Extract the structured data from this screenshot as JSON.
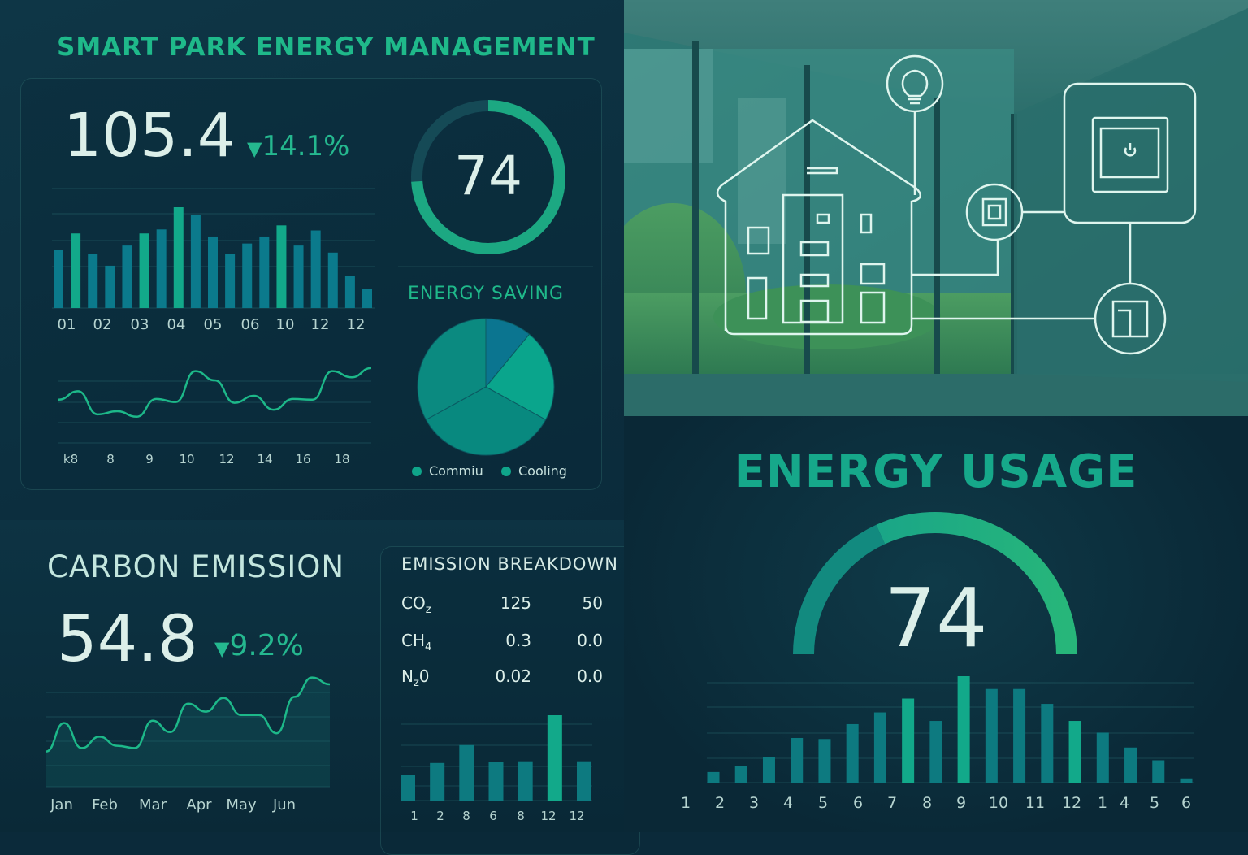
{
  "header": {
    "title": "SMART PARK ENERGY MANAGEMENT"
  },
  "kpi": {
    "value": "105.4",
    "delta": "14.1%",
    "delta_direction": "down"
  },
  "score_ring": {
    "value": "74",
    "fraction": 0.74
  },
  "energy_saving": {
    "title": "ENERGY SAVING",
    "legend": [
      {
        "label": "Commiu",
        "color": "#0fa58a"
      },
      {
        "label": "Cooling",
        "color": "#0fa58a"
      }
    ]
  },
  "carbon": {
    "title": "CARBON EMISSION",
    "value": "54.8",
    "delta": "9.2%",
    "delta_direction": "down"
  },
  "breakdown": {
    "title": "EMISSION BREAKDOWN",
    "rows": [
      {
        "gas": "CO",
        "sub": "z",
        "v1": "125",
        "v2": "50"
      },
      {
        "gas": "CH",
        "sub": "4",
        "v1": "0.3",
        "v2": "0.0"
      },
      {
        "gas": "N",
        "sub": "z",
        "tail": "0",
        "v1": "0.02",
        "v2": "0.0"
      }
    ]
  },
  "usage": {
    "title": "ENERGY USAGE",
    "value": "74",
    "fraction": 0.74
  },
  "colors": {
    "accent": "#1fb98a",
    "bar": "#0b7a8c",
    "bar_highlight": "#12a98a",
    "track": "#154a56",
    "background": "#0b2a3a"
  },
  "chart_data": [
    {
      "id": "top-bars",
      "type": "bar",
      "values": [
        58,
        74,
        54,
        42,
        62,
        74,
        78,
        100,
        92,
        71,
        54,
        64,
        71,
        82,
        62,
        77,
        55,
        32,
        19
      ],
      "highlight": [
        1,
        5,
        7,
        13
      ],
      "tick_labels": [
        "01",
        "02",
        "03",
        "04",
        "05",
        "06",
        "10",
        "12",
        "12"
      ],
      "ylim": [
        0,
        100
      ],
      "grid": true
    },
    {
      "id": "top-line",
      "type": "line",
      "values": [
        56,
        67,
        37,
        41,
        34,
        57,
        53,
        93,
        81,
        52,
        61,
        43,
        57,
        56,
        93,
        85,
        97
      ],
      "tick_labels": [
        "k8",
        "8",
        "9",
        "10",
        "12",
        "14",
        "16",
        "18"
      ],
      "ylim": [
        0,
        100
      ],
      "grid": true
    },
    {
      "id": "saving-pie",
      "type": "pie",
      "values": [
        11,
        22,
        34,
        33
      ],
      "colors": [
        "#0b7590",
        "#0aa58c",
        "#08897f",
        "#0b8a80"
      ]
    },
    {
      "id": "carbon-line",
      "type": "line",
      "values": [
        31,
        56,
        34,
        44,
        36,
        34,
        58,
        48,
        73,
        66,
        78,
        63,
        63,
        47,
        79,
        96,
        90
      ],
      "tick_labels": [
        "Jan",
        "Feb",
        "Mar",
        "Apr",
        "May",
        "Jun"
      ],
      "ylim": [
        0,
        100
      ],
      "grid": true
    },
    {
      "id": "breakdown-bars",
      "type": "bar",
      "values": [
        30,
        44,
        65,
        45,
        46,
        100,
        46
      ],
      "highlight": [
        5
      ],
      "tick_labels": [
        "1",
        "2",
        "8",
        "6",
        "8",
        "12",
        "12"
      ],
      "ylim": [
        0,
        100
      ],
      "grid": true
    },
    {
      "id": "usage-bars",
      "type": "bar",
      "values": [
        10,
        16,
        24,
        42,
        41,
        55,
        66,
        79,
        58,
        100,
        88,
        88,
        74,
        58,
        47,
        33,
        21,
        4
      ],
      "highlight": [
        7,
        9,
        13
      ],
      "tick_labels": [
        "1",
        "2",
        "3",
        "4",
        "5",
        "6",
        "7",
        "8",
        "9",
        "10",
        "11",
        "12",
        "1",
        "4",
        "5",
        "6"
      ],
      "ylim": [
        0,
        100
      ],
      "grid": true
    }
  ]
}
